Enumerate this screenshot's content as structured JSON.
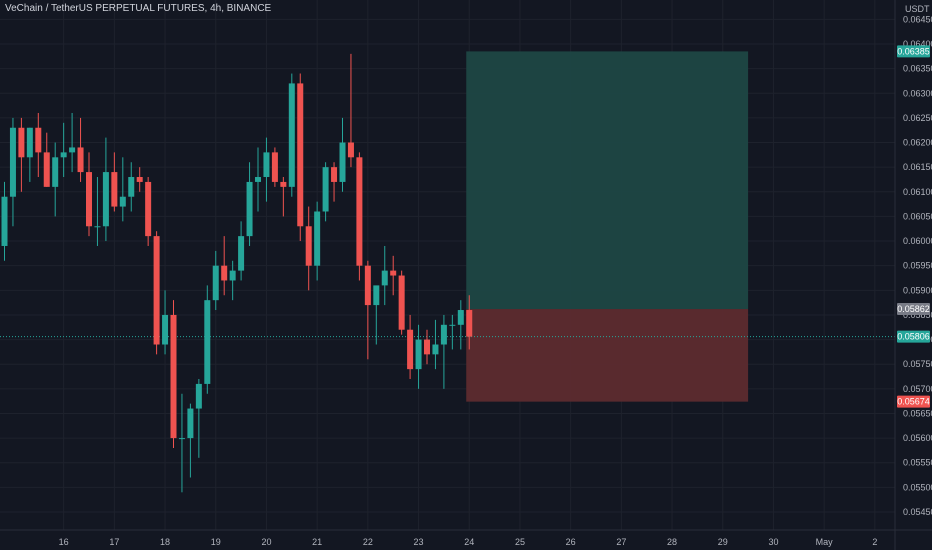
{
  "header": {
    "title": "VeChain / TetherUS PERPETUAL FUTURES, 4h, BINANCE",
    "currency": "USDT"
  },
  "colors": {
    "background": "#131722",
    "grid": "#1e222d",
    "up": "#26a69a",
    "down": "#ef5350",
    "target_zone": "#1d4745",
    "stop_zone": "#5d2b2f",
    "price_line": "#26a69a",
    "target_tag": "#26a69a",
    "stop_tag": "#ef5350",
    "entry_tag": "#787b86",
    "current_tag": "#26a69a",
    "axis_text": "#b2b5be"
  },
  "chart_data": {
    "type": "candlestick",
    "timeframe": "4h",
    "symbol": "VeChain / TetherUS PERPETUAL FUTURES",
    "exchange": "BINANCE",
    "quote_currency": "USDT",
    "ylim": [
      0.0542,
      0.0652
    ],
    "y_ticks": [
      "0.06450",
      "0.06400",
      "0.06350",
      "0.06300",
      "0.06250",
      "0.06200",
      "0.06150",
      "0.06100",
      "0.06050",
      "0.06000",
      "0.05950",
      "0.05900",
      "0.05850",
      "0.05800",
      "0.05750",
      "0.05700",
      "0.05650",
      "0.05600",
      "0.05550",
      "0.05500",
      "0.05450"
    ],
    "x_ticks": [
      "16",
      "17",
      "18",
      "19",
      "20",
      "21",
      "22",
      "23",
      "24",
      "25",
      "26",
      "27",
      "28",
      "29",
      "30",
      "May",
      "2"
    ],
    "x_tick_index": [
      7,
      13,
      19,
      25,
      31,
      37,
      43,
      49,
      55,
      61,
      67,
      73,
      79,
      85,
      91,
      97,
      103
    ],
    "candles": [
      {
        "o": 0.0599,
        "h": 0.0612,
        "l": 0.0596,
        "c": 0.0609
      },
      {
        "o": 0.0609,
        "h": 0.0625,
        "l": 0.0603,
        "c": 0.0623
      },
      {
        "o": 0.0623,
        "h": 0.0625,
        "l": 0.061,
        "c": 0.0617
      },
      {
        "o": 0.0617,
        "h": 0.0623,
        "l": 0.0612,
        "c": 0.0623
      },
      {
        "o": 0.0623,
        "h": 0.0626,
        "l": 0.0613,
        "c": 0.0618
      },
      {
        "o": 0.0618,
        "h": 0.0622,
        "l": 0.0611,
        "c": 0.0611
      },
      {
        "o": 0.0611,
        "h": 0.062,
        "l": 0.0605,
        "c": 0.0617
      },
      {
        "o": 0.0617,
        "h": 0.0624,
        "l": 0.0613,
        "c": 0.0618
      },
      {
        "o": 0.0618,
        "h": 0.0626,
        "l": 0.0614,
        "c": 0.0619
      },
      {
        "o": 0.0619,
        "h": 0.0625,
        "l": 0.0612,
        "c": 0.0614
      },
      {
        "o": 0.0614,
        "h": 0.0618,
        "l": 0.0601,
        "c": 0.0603
      },
      {
        "o": 0.0603,
        "h": 0.0613,
        "l": 0.0599,
        "c": 0.0603
      },
      {
        "o": 0.0603,
        "h": 0.0621,
        "l": 0.06,
        "c": 0.0614
      },
      {
        "o": 0.0614,
        "h": 0.0618,
        "l": 0.0606,
        "c": 0.0607
      },
      {
        "o": 0.0607,
        "h": 0.0617,
        "l": 0.0604,
        "c": 0.0609
      },
      {
        "o": 0.0609,
        "h": 0.0616,
        "l": 0.0606,
        "c": 0.0613
      },
      {
        "o": 0.0613,
        "h": 0.0615,
        "l": 0.061,
        "c": 0.0612
      },
      {
        "o": 0.0612,
        "h": 0.0613,
        "l": 0.0599,
        "c": 0.0601
      },
      {
        "o": 0.0601,
        "h": 0.0602,
        "l": 0.0577,
        "c": 0.0579
      },
      {
        "o": 0.0579,
        "h": 0.059,
        "l": 0.0577,
        "c": 0.0585
      },
      {
        "o": 0.0585,
        "h": 0.0588,
        "l": 0.0558,
        "c": 0.056
      },
      {
        "o": 0.056,
        "h": 0.0569,
        "l": 0.0549,
        "c": 0.056
      },
      {
        "o": 0.056,
        "h": 0.0567,
        "l": 0.0552,
        "c": 0.0566
      },
      {
        "o": 0.0566,
        "h": 0.0572,
        "l": 0.0556,
        "c": 0.0571
      },
      {
        "o": 0.0571,
        "h": 0.0591,
        "l": 0.0569,
        "c": 0.0588
      },
      {
        "o": 0.0588,
        "h": 0.0598,
        "l": 0.0586,
        "c": 0.0595
      },
      {
        "o": 0.0595,
        "h": 0.0601,
        "l": 0.0589,
        "c": 0.0592
      },
      {
        "o": 0.0592,
        "h": 0.0596,
        "l": 0.0588,
        "c": 0.0594
      },
      {
        "o": 0.0594,
        "h": 0.0604,
        "l": 0.0592,
        "c": 0.0601
      },
      {
        "o": 0.0601,
        "h": 0.0616,
        "l": 0.0599,
        "c": 0.0612
      },
      {
        "o": 0.0612,
        "h": 0.0619,
        "l": 0.0606,
        "c": 0.0613
      },
      {
        "o": 0.0613,
        "h": 0.0621,
        "l": 0.0608,
        "c": 0.0618
      },
      {
        "o": 0.0618,
        "h": 0.0619,
        "l": 0.0611,
        "c": 0.0612
      },
      {
        "o": 0.0612,
        "h": 0.0613,
        "l": 0.0605,
        "c": 0.0611
      },
      {
        "o": 0.0611,
        "h": 0.0634,
        "l": 0.0609,
        "c": 0.0632
      },
      {
        "o": 0.0632,
        "h": 0.0634,
        "l": 0.06,
        "c": 0.0603
      },
      {
        "o": 0.0603,
        "h": 0.0607,
        "l": 0.059,
        "c": 0.0595
      },
      {
        "o": 0.0595,
        "h": 0.0608,
        "l": 0.0592,
        "c": 0.0606
      },
      {
        "o": 0.0606,
        "h": 0.0616,
        "l": 0.0604,
        "c": 0.0615
      },
      {
        "o": 0.0615,
        "h": 0.0616,
        "l": 0.0608,
        "c": 0.0612
      },
      {
        "o": 0.0612,
        "h": 0.0625,
        "l": 0.061,
        "c": 0.062
      },
      {
        "o": 0.062,
        "h": 0.0638,
        "l": 0.0615,
        "c": 0.0617
      },
      {
        "o": 0.0617,
        "h": 0.0618,
        "l": 0.0592,
        "c": 0.0595
      },
      {
        "o": 0.0595,
        "h": 0.0596,
        "l": 0.0576,
        "c": 0.0587
      },
      {
        "o": 0.0587,
        "h": 0.059,
        "l": 0.0579,
        "c": 0.0591
      },
      {
        "o": 0.0591,
        "h": 0.0599,
        "l": 0.0587,
        "c": 0.0594
      },
      {
        "o": 0.0594,
        "h": 0.0597,
        "l": 0.0589,
        "c": 0.0593
      },
      {
        "o": 0.0593,
        "h": 0.0594,
        "l": 0.0581,
        "c": 0.0582
      },
      {
        "o": 0.0582,
        "h": 0.0585,
        "l": 0.0572,
        "c": 0.0574
      },
      {
        "o": 0.0574,
        "h": 0.0583,
        "l": 0.057,
        "c": 0.058
      },
      {
        "o": 0.058,
        "h": 0.0582,
        "l": 0.0575,
        "c": 0.0577
      },
      {
        "o": 0.0577,
        "h": 0.0584,
        "l": 0.0574,
        "c": 0.0579
      },
      {
        "o": 0.0579,
        "h": 0.0585,
        "l": 0.057,
        "c": 0.0583
      },
      {
        "o": 0.0583,
        "h": 0.0585,
        "l": 0.0578,
        "c": 0.0583
      },
      {
        "o": 0.0583,
        "h": 0.0588,
        "l": 0.0578,
        "c": 0.0586
      },
      {
        "o": 0.0586,
        "h": 0.0589,
        "l": 0.0578,
        "c": 0.05806
      }
    ],
    "position": {
      "side": "long",
      "entry": 0.05862,
      "target": 0.06385,
      "stop": 0.05674,
      "start_index": 55,
      "end_index": 88
    },
    "price_tags": {
      "target": "0.06385",
      "entry": "0.05862",
      "current": "0.05806",
      "stop": "0.05674"
    },
    "current_price": 0.05806,
    "grid": true
  }
}
